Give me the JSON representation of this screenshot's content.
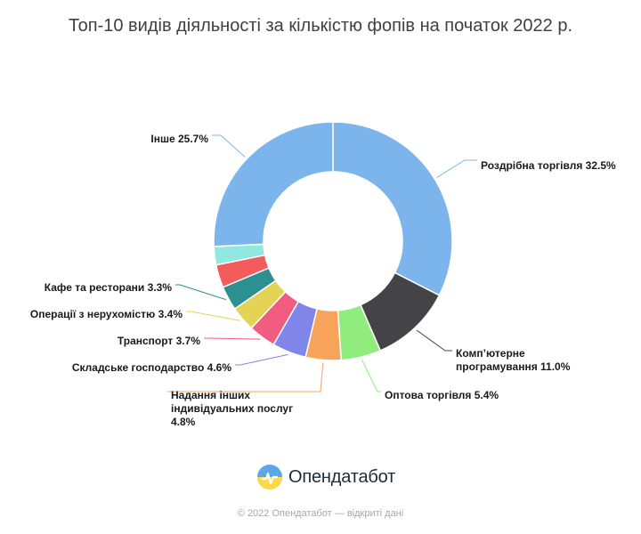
{
  "title": "Топ-10 видів діяльності за кількістю фопів на початок 2022 р.",
  "brand": {
    "name": "Опендатабот",
    "logo_icon": "opendatabot-logo-icon"
  },
  "footer": "© 2022 Опендатабот — відкриті дані",
  "chart_data": {
    "type": "pie",
    "style": "donut",
    "unit": "%",
    "slices": [
      {
        "label": "Роздрібна торгівля",
        "value": 32.5,
        "color": "#7cb5ec"
      },
      {
        "label": "Комп'ютерне програмування",
        "value": 11.0,
        "color": "#434348"
      },
      {
        "label": "Оптова торгівля",
        "value": 5.4,
        "color": "#90ed7d"
      },
      {
        "label": "Надання інших індивідуальних послуг",
        "value": 4.8,
        "color": "#f7a35c"
      },
      {
        "label": "Складське господарство",
        "value": 4.6,
        "color": "#8085e9"
      },
      {
        "label": "Транспорт",
        "value": 3.7,
        "color": "#f15c80"
      },
      {
        "label": "Операції з нерухомістю",
        "value": 3.4,
        "color": "#e4d354"
      },
      {
        "label": "Кафе та ресторани",
        "value": 3.3,
        "color": "#2b908f"
      },
      {
        "label": "",
        "value": 3.1,
        "color": "#f45b5b"
      },
      {
        "label": "",
        "value": 2.5,
        "color": "#91e8e1"
      },
      {
        "label": "Інше",
        "value": 25.7,
        "color": "#7cb5ec"
      }
    ]
  }
}
